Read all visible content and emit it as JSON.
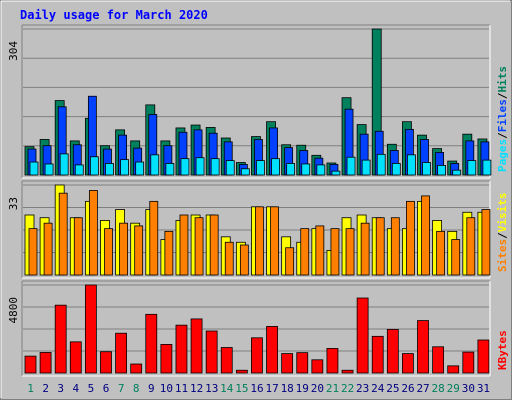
{
  "chart_data": [
    {
      "type": "bar",
      "title": "Daily usage for March 2020",
      "panel": "hits-files-pages",
      "ymax_label": "304",
      "ylim": [
        0,
        304
      ],
      "categories": [
        "1",
        "2",
        "3",
        "4",
        "5",
        "6",
        "7",
        "8",
        "9",
        "10",
        "11",
        "12",
        "13",
        "14",
        "15",
        "16",
        "17",
        "18",
        "19",
        "20",
        "21",
        "22",
        "23",
        "24",
        "25",
        "26",
        "27",
        "28",
        "29",
        "30",
        "31"
      ],
      "weekend_days": [
        "1",
        "7",
        "8",
        "14",
        "15",
        "21",
        "22",
        "28",
        "29"
      ],
      "legend": [
        "Pages",
        "Files",
        "Hits"
      ],
      "series": [
        {
          "name": "Hits",
          "color": "#00805c",
          "values": [
            59,
            74,
            155,
            71,
            118,
            61,
            94,
            71,
            146,
            71,
            98,
            104,
            99,
            77,
            26,
            80,
            111,
            63,
            62,
            41,
            25,
            161,
            105,
            304,
            64,
            111,
            83,
            55,
            29,
            85,
            75
          ]
        },
        {
          "name": "Files",
          "color": "#0040ff",
          "values": [
            54,
            61,
            142,
            63,
            164,
            54,
            83,
            56,
            126,
            61,
            89,
            94,
            87,
            69,
            22,
            74,
            98,
            57,
            51,
            35,
            22,
            137,
            85,
            91,
            51,
            95,
            74,
            47,
            24,
            71,
            69
          ]
        },
        {
          "name": "Pages",
          "color": "#00e0ff",
          "values": [
            27,
            23,
            44,
            21,
            38,
            24,
            32,
            27,
            42,
            24,
            34,
            36,
            34,
            30,
            13,
            30,
            34,
            24,
            23,
            21,
            8,
            37,
            31,
            43,
            24,
            42,
            26,
            20,
            10,
            30,
            31
          ]
        }
      ]
    },
    {
      "type": "bar",
      "panel": "visits-sites",
      "ymax_label": "33",
      "ylim": [
        0,
        33
      ],
      "categories": [
        "1",
        "2",
        "3",
        "4",
        "5",
        "6",
        "7",
        "8",
        "9",
        "10",
        "11",
        "12",
        "13",
        "14",
        "15",
        "16",
        "17",
        "18",
        "19",
        "20",
        "21",
        "22",
        "23",
        "24",
        "25",
        "26",
        "27",
        "28",
        "29",
        "30",
        "31"
      ],
      "legend": [
        "Sites",
        "Visits"
      ],
      "series": [
        {
          "name": "Visits",
          "color": "#ffff00",
          "values": [
            22,
            21,
            33,
            21,
            27,
            20,
            24,
            19,
            24,
            13,
            20,
            22,
            22,
            14,
            12,
            25,
            25,
            14,
            12,
            17,
            9,
            21,
            22,
            21,
            17,
            17,
            27,
            20,
            16,
            23,
            23
          ]
        },
        {
          "name": "Sites",
          "color": "#ff8000",
          "values": [
            17,
            19,
            30,
            21,
            31,
            17,
            19,
            18,
            27,
            16,
            22,
            21,
            22,
            12,
            11,
            25,
            25,
            10,
            17,
            18,
            17,
            17,
            19,
            21,
            21,
            27,
            29,
            16,
            13,
            21,
            24
          ]
        }
      ]
    },
    {
      "type": "bar",
      "panel": "kbytes",
      "ymax_label": "4800",
      "ylim": [
        0,
        4800
      ],
      "categories": [
        "1",
        "2",
        "3",
        "4",
        "5",
        "6",
        "7",
        "8",
        "9",
        "10",
        "11",
        "12",
        "13",
        "14",
        "15",
        "16",
        "17",
        "18",
        "19",
        "20",
        "21",
        "22",
        "23",
        "24",
        "25",
        "26",
        "27",
        "28",
        "29",
        "30",
        "31"
      ],
      "legend": [
        "KBytes"
      ],
      "series": [
        {
          "name": "KBytes",
          "color": "#ff0000",
          "values": [
            920,
            1120,
            3700,
            1700,
            4800,
            1160,
            2170,
            490,
            3200,
            1560,
            2610,
            2950,
            2290,
            1390,
            150,
            1920,
            2540,
            1060,
            1110,
            720,
            1340,
            150,
            4090,
            2000,
            2380,
            1060,
            2860,
            1430,
            390,
            1140,
            1800
          ]
        }
      ]
    }
  ],
  "colors": {
    "background": "#c0c0c0",
    "title": "#0000ff",
    "weekday_label": "#000080",
    "weekend_label": "#00805c",
    "hits": "#00805c",
    "files": "#0040ff",
    "pages": "#00e0ff",
    "visits": "#ffff00",
    "sites": "#ff8000",
    "kbytes": "#ff0000"
  }
}
